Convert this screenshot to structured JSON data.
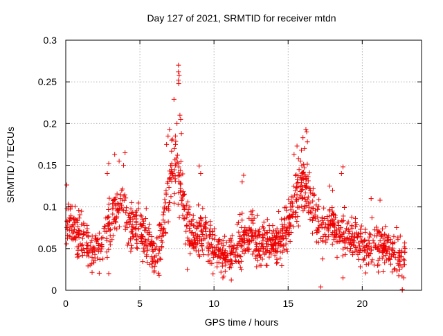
{
  "chart_data": {
    "type": "scatter",
    "title": "Day 127 of 2021, SRMTID for receiver mtdn",
    "xlabel": "GPS time / hours",
    "ylabel": "SRMTID / TECUs",
    "xlim": [
      0,
      24
    ],
    "ylim": [
      0,
      0.3
    ],
    "x_ticks": [
      0,
      5,
      10,
      15,
      20
    ],
    "y_ticks": [
      0,
      0.05,
      0.1,
      0.15,
      0.2,
      0.25,
      0.3
    ],
    "x_tick_labels": [
      "0",
      "5",
      "10",
      "15",
      "20"
    ],
    "y_tick_labels": [
      "0",
      "0.05",
      "0.1",
      "0.15",
      "0.2",
      "0.25",
      "0.3"
    ],
    "grid": true,
    "series": [
      {
        "name": "SRMTID",
        "marker": "plus",
        "color": "#ee0000",
        "envelope": [
          [
            0.0,
            0.085
          ],
          [
            0.25,
            0.09
          ],
          [
            0.5,
            0.08
          ],
          [
            0.8,
            0.065
          ],
          [
            1.0,
            0.07
          ],
          [
            1.3,
            0.055
          ],
          [
            1.6,
            0.05
          ],
          [
            2.0,
            0.05
          ],
          [
            2.4,
            0.055
          ],
          [
            2.8,
            0.07
          ],
          [
            3.1,
            0.09
          ],
          [
            3.4,
            0.105
          ],
          [
            3.7,
            0.1
          ],
          [
            4.0,
            0.09
          ],
          [
            4.4,
            0.08
          ],
          [
            4.8,
            0.075
          ],
          [
            5.2,
            0.07
          ],
          [
            5.6,
            0.06
          ],
          [
            6.0,
            0.045
          ],
          [
            6.3,
            0.055
          ],
          [
            6.6,
            0.08
          ],
          [
            6.9,
            0.12
          ],
          [
            7.2,
            0.14
          ],
          [
            7.5,
            0.15
          ],
          [
            7.8,
            0.12
          ],
          [
            8.1,
            0.08
          ],
          [
            8.4,
            0.065
          ],
          [
            8.8,
            0.06
          ],
          [
            9.2,
            0.07
          ],
          [
            9.6,
            0.065
          ],
          [
            10.0,
            0.05
          ],
          [
            10.4,
            0.048
          ],
          [
            10.8,
            0.04
          ],
          [
            11.2,
            0.045
          ],
          [
            11.6,
            0.055
          ],
          [
            12.0,
            0.06
          ],
          [
            12.4,
            0.07
          ],
          [
            12.8,
            0.06
          ],
          [
            13.2,
            0.05
          ],
          [
            13.6,
            0.06
          ],
          [
            14.0,
            0.06
          ],
          [
            14.4,
            0.06
          ],
          [
            14.8,
            0.07
          ],
          [
            15.2,
            0.09
          ],
          [
            15.5,
            0.11
          ],
          [
            15.8,
            0.12
          ],
          [
            16.1,
            0.13
          ],
          [
            16.4,
            0.115
          ],
          [
            16.8,
            0.09
          ],
          [
            17.2,
            0.07
          ],
          [
            17.6,
            0.08
          ],
          [
            18.0,
            0.085
          ],
          [
            18.4,
            0.07
          ],
          [
            18.8,
            0.065
          ],
          [
            19.2,
            0.06
          ],
          [
            19.6,
            0.06
          ],
          [
            20.0,
            0.055
          ],
          [
            20.4,
            0.05
          ],
          [
            20.8,
            0.05
          ],
          [
            21.2,
            0.055
          ],
          [
            21.6,
            0.05
          ],
          [
            22.0,
            0.045
          ],
          [
            22.4,
            0.04
          ],
          [
            22.9,
            0.04
          ]
        ],
        "spread": 0.022,
        "count": 1500,
        "peaks": [
          [
            7.6,
            0.27
          ],
          [
            7.6,
            0.262
          ],
          [
            7.65,
            0.258
          ],
          [
            7.6,
            0.252
          ],
          [
            7.62,
            0.248
          ],
          [
            7.3,
            0.229
          ],
          [
            7.7,
            0.21
          ],
          [
            7.75,
            0.205
          ],
          [
            7.5,
            0.2
          ],
          [
            7.8,
            0.188
          ],
          [
            7.0,
            0.193
          ],
          [
            6.9,
            0.185
          ],
          [
            7.15,
            0.18
          ],
          [
            7.4,
            0.175
          ],
          [
            6.8,
            0.175
          ],
          [
            16.2,
            0.193
          ],
          [
            16.25,
            0.19
          ],
          [
            16.0,
            0.183
          ],
          [
            16.3,
            0.178
          ],
          [
            15.6,
            0.173
          ],
          [
            16.1,
            0.17
          ],
          [
            15.9,
            0.168
          ],
          [
            15.4,
            0.163
          ],
          [
            15.7,
            0.158
          ],
          [
            3.3,
            0.163
          ],
          [
            4.0,
            0.165
          ],
          [
            3.6,
            0.155
          ],
          [
            3.9,
            0.15
          ],
          [
            2.9,
            0.152
          ],
          [
            2.8,
            0.14
          ],
          [
            9.0,
            0.149
          ],
          [
            9.1,
            0.14
          ],
          [
            12.0,
            0.138
          ],
          [
            11.9,
            0.13
          ],
          [
            18.7,
            0.148
          ],
          [
            18.6,
            0.14
          ],
          [
            17.8,
            0.125
          ],
          [
            18.0,
            0.12
          ],
          [
            21.2,
            0.108
          ],
          [
            20.6,
            0.11
          ]
        ],
        "lows": [
          [
            17.2,
            0.004
          ],
          [
            22.7,
            0.001
          ],
          [
            22.7,
            0.0
          ],
          [
            6.3,
            0.018
          ],
          [
            2.9,
            0.02
          ],
          [
            10.6,
            0.015
          ],
          [
            18.7,
            0.015
          ],
          [
            22.8,
            0.015
          ],
          [
            13.1,
            0.03
          ],
          [
            8.2,
            0.025
          ]
        ]
      }
    ]
  }
}
